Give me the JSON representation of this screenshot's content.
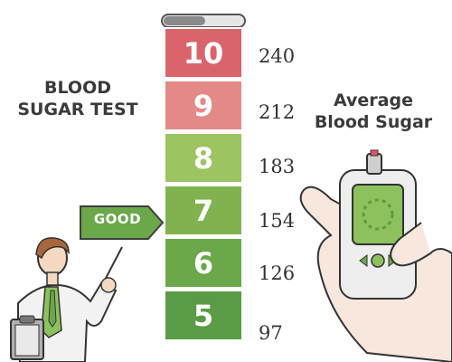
{
  "titles": {
    "left_line1": "BLOOD",
    "left_line2": "SUGAR TEST",
    "right_line1": "Average",
    "right_line2": "Blood Sugar"
  },
  "levels": [
    {
      "score": "10",
      "value": "240",
      "color": "#d9656b"
    },
    {
      "score": "9",
      "value": "212",
      "color": "#e48a86"
    },
    {
      "score": "8",
      "value": "183",
      "color": "#9cc461"
    },
    {
      "score": "7",
      "value": "154",
      "color": "#80b34f"
    },
    {
      "score": "6",
      "value": "126",
      "color": "#6aa84a"
    },
    {
      "score": "5",
      "value": "97",
      "color": "#5a9c45"
    }
  ],
  "flag": {
    "label": "GOOD",
    "color": "#6aa84a"
  },
  "icons": [
    "doctor-illustration",
    "glucose-meter-icon",
    "hand-icon",
    "test-tube-icon"
  ]
}
